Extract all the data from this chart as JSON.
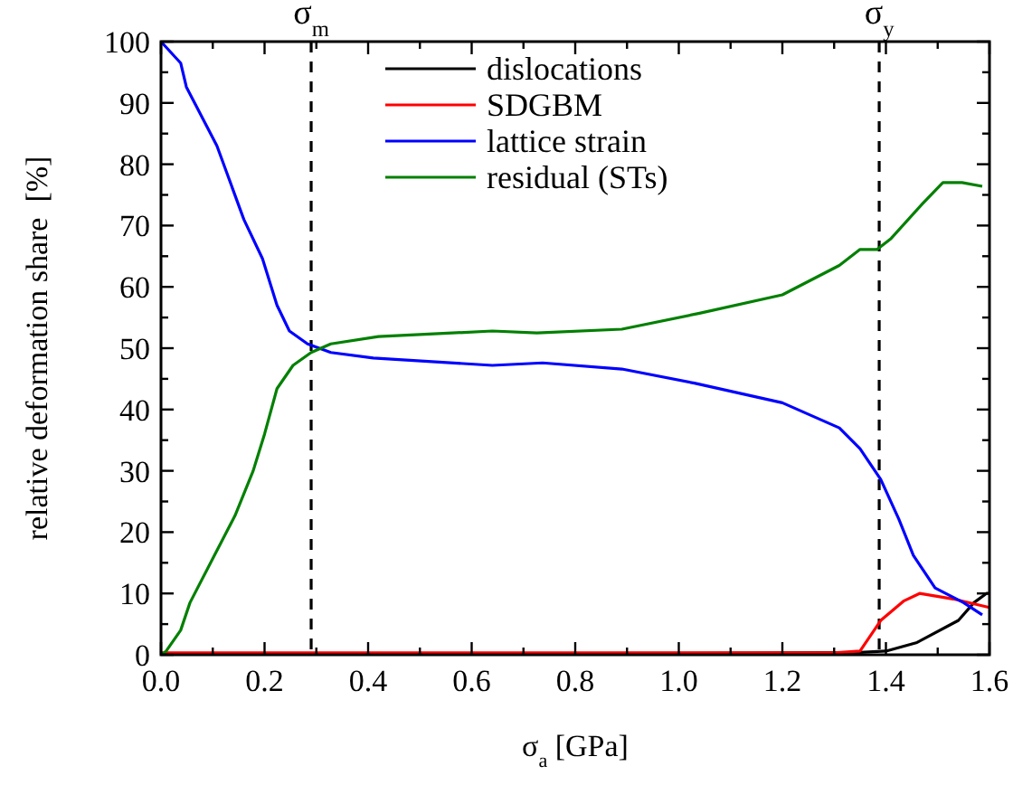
{
  "chart_data": {
    "type": "line",
    "xlabel": "σ$_{a}$ [GPa]",
    "ylabel": "relative deformation share  [%]",
    "xlim": [
      0,
      1.6
    ],
    "ylim": [
      0,
      100
    ],
    "xticks": [
      {
        "value": 0,
        "label": "0.0"
      },
      {
        "value": 0.1,
        "label": null
      },
      0.2,
      {
        "value": 0.3,
        "label": null
      },
      0.4,
      {
        "value": 0.5,
        "label": null
      },
      0.6,
      {
        "value": 0.7,
        "label": null
      },
      0.8,
      {
        "value": 0.9,
        "label": null
      },
      {
        "value": 1,
        "label": "1.0"
      },
      {
        "value": 1.1,
        "label": null
      },
      1.2,
      {
        "value": 1.3,
        "label": null
      },
      1.4,
      {
        "value": 1.5,
        "label": null
      },
      1.6
    ],
    "yticks": [
      0,
      {
        "value": 5,
        "label": null
      },
      10,
      {
        "value": 15,
        "label": null
      },
      20,
      {
        "value": 25,
        "label": null
      },
      30,
      {
        "value": 35,
        "label": null
      },
      40,
      {
        "value": 45,
        "label": null
      },
      50,
      {
        "value": 55,
        "label": null
      },
      60,
      {
        "value": 65,
        "label": null
      },
      70,
      {
        "value": 75,
        "label": null
      },
      80,
      {
        "value": 85,
        "label": null
      },
      90,
      {
        "value": 95,
        "label": null
      },
      100
    ],
    "grid": false,
    "legend": "top",
    "marker": "none",
    "line_style": "solid",
    "ref_lines": [
      {
        "axis": "x",
        "value": 0.29,
        "label": "σ$_{m}$",
        "color": "#000000",
        "line_style": "dashed"
      },
      {
        "axis": "x",
        "value": 1.387,
        "label": "σ$_{y}$",
        "color": "#000000",
        "line_style": "dashed"
      }
    ],
    "series": [
      {
        "name": "dislocations",
        "color": "#000000",
        "x": [
          0,
          0.4,
          0.8,
          1.2,
          1.35,
          1.4,
          1.46,
          1.54,
          1.57,
          1.594,
          1.6
        ],
        "values": [
          0.2,
          0.2,
          0.2,
          0.3,
          0.4,
          0.6,
          2,
          5.6,
          8.5,
          10,
          10
        ]
      },
      {
        "name": "SDGBM",
        "color": "#ff0000",
        "x": [
          0,
          0.4,
          0.8,
          1.2,
          1.3,
          1.35,
          1.39,
          1.435,
          1.465,
          1.53,
          1.6
        ],
        "values": [
          0.3,
          0.3,
          0.3,
          0.3,
          0.3,
          0.6,
          5.6,
          8.8,
          10,
          9.1,
          7.7
        ]
      },
      {
        "name": "lattice strain",
        "color": "#0000ff",
        "x": [
          0,
          0.038,
          0.049,
          0.108,
          0.16,
          0.196,
          0.224,
          0.248,
          0.283,
          0.328,
          0.41,
          0.64,
          0.737,
          0.89,
          1.03,
          1.2,
          1.31,
          1.35,
          1.39,
          1.425,
          1.453,
          1.495,
          1.55,
          1.586
        ],
        "values": [
          100,
          96.5,
          92.6,
          83,
          71,
          64.6,
          57,
          52.8,
          50.7,
          49.3,
          48.4,
          47.2,
          47.6,
          46.6,
          44.3,
          41.1,
          37,
          33.6,
          28.6,
          22.1,
          16.2,
          10.9,
          8.5,
          6.5
        ]
      },
      {
        "name": "residual (STs)",
        "color": "#008000",
        "x": [
          0,
          0.01,
          0.038,
          0.056,
          0.108,
          0.143,
          0.178,
          0.2,
          0.224,
          0.255,
          0.29,
          0.328,
          0.42,
          0.64,
          0.726,
          0.89,
          1.04,
          1.2,
          1.31,
          1.35,
          1.383,
          1.41,
          1.47,
          1.51,
          1.547,
          1.586
        ],
        "values": [
          0,
          0.6,
          4,
          8.5,
          17,
          22.7,
          30,
          36,
          43.4,
          47.2,
          49.3,
          50.7,
          51.9,
          52.8,
          52.5,
          53.1,
          55.7,
          58.7,
          63.5,
          66.1,
          66.1,
          67.9,
          73.5,
          77,
          77,
          76.4
        ]
      }
    ]
  }
}
